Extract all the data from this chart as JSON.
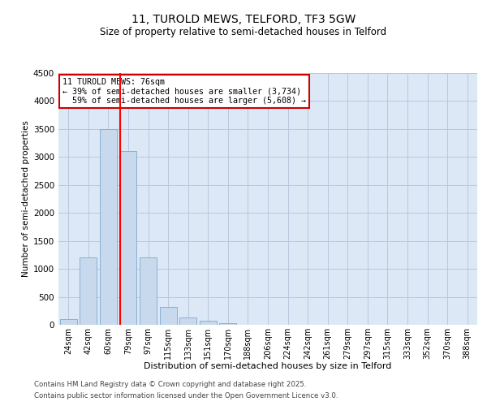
{
  "title1": "11, TUROLD MEWS, TELFORD, TF3 5GW",
  "title2": "Size of property relative to semi-detached houses in Telford",
  "xlabel": "Distribution of semi-detached houses by size in Telford",
  "ylabel": "Number of semi-detached properties",
  "categories": [
    "24sqm",
    "42sqm",
    "60sqm",
    "79sqm",
    "97sqm",
    "115sqm",
    "133sqm",
    "151sqm",
    "170sqm",
    "188sqm",
    "206sqm",
    "224sqm",
    "242sqm",
    "261sqm",
    "279sqm",
    "297sqm",
    "315sqm",
    "333sqm",
    "352sqm",
    "370sqm",
    "388sqm"
  ],
  "values": [
    100,
    1200,
    3500,
    3100,
    1200,
    320,
    130,
    70,
    30,
    5,
    0,
    0,
    0,
    0,
    0,
    0,
    0,
    0,
    0,
    0,
    0
  ],
  "bar_color": "#c9d9ed",
  "bar_edge_color": "#7aaacf",
  "red_line_index": 3,
  "annotation_line1": "11 TUROLD MEWS: 76sqm",
  "annotation_line2": "← 39% of semi-detached houses are smaller (3,734)",
  "annotation_line3": "  59% of semi-detached houses are larger (5,608) →",
  "annotation_box_color": "#ffffff",
  "annotation_box_edge": "#cc0000",
  "ylim": [
    0,
    4500
  ],
  "yticks": [
    0,
    500,
    1000,
    1500,
    2000,
    2500,
    3000,
    3500,
    4000,
    4500
  ],
  "background_color": "#ffffff",
  "plot_bg_color": "#dce8f5",
  "grid_color": "#b8c8dc",
  "footer1": "Contains HM Land Registry data © Crown copyright and database right 2025.",
  "footer2": "Contains public sector information licensed under the Open Government Licence v3.0.",
  "title1_fontsize": 10,
  "title2_fontsize": 8.5
}
